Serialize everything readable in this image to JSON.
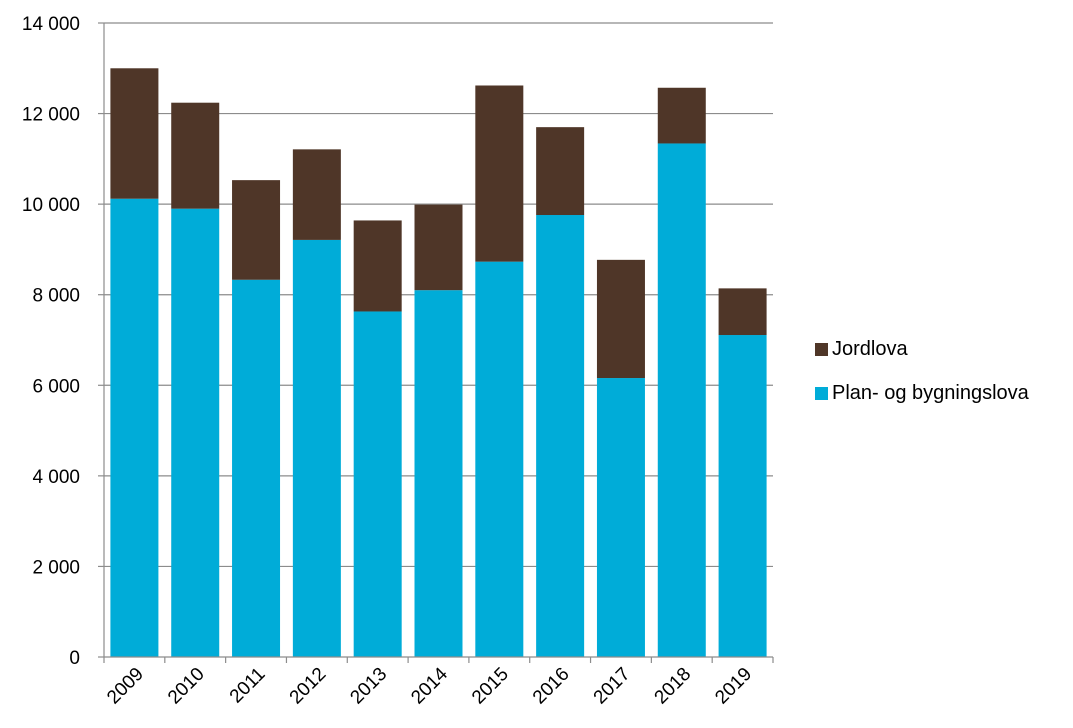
{
  "chart_data": {
    "type": "bar",
    "stacked": true,
    "categories": [
      "2009",
      "2010",
      "2011",
      "2012",
      "2013",
      "2014",
      "2015",
      "2016",
      "2017",
      "2018",
      "2019"
    ],
    "series": [
      {
        "name": "Plan- og bygningslova",
        "color": "#00ACD8",
        "values": [
          10120,
          9900,
          8330,
          9210,
          7630,
          8100,
          8730,
          9760,
          6160,
          11340,
          7110
        ]
      },
      {
        "name": "Jordlova",
        "color": "#4F3628",
        "values": [
          2880,
          2340,
          2200,
          2000,
          2010,
          1890,
          3890,
          1940,
          2610,
          1230,
          1030
        ]
      }
    ],
    "ylim": [
      0,
      14000
    ],
    "yticks": [
      0,
      2000,
      4000,
      6000,
      8000,
      10000,
      12000,
      14000
    ],
    "ytick_labels": [
      "0",
      "2 000",
      "4 000",
      "6 000",
      "8 000",
      "10 000",
      "12 000",
      "14 000"
    ],
    "grid": true,
    "legend_position": "right",
    "legend_order": [
      "Jordlova",
      "Plan- og bygningslova"
    ],
    "xtick_rotation": -45
  }
}
